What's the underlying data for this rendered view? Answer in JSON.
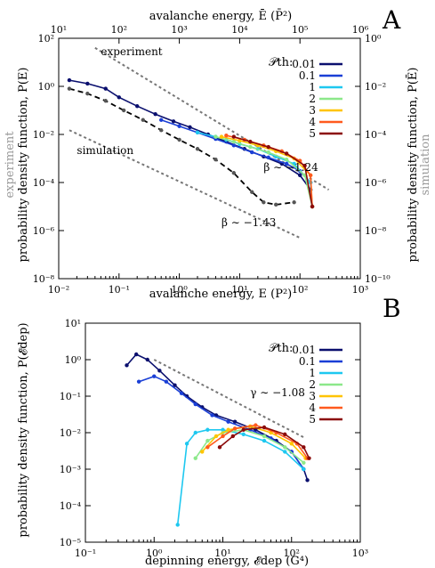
{
  "chart_data": [
    {
      "type": "line",
      "panel_label": "A",
      "title": "",
      "xlabel": "avalanche energy, E (P²)",
      "xlabel_top": "avalanche energy, Ē (P̄²)",
      "ylabel": "probability density function, P(E)",
      "ylabel_right": "probability density function, P(Ē)",
      "side_label_left": "experiment",
      "side_label_right": "simulation",
      "xscale": "log",
      "yscale": "log",
      "xlim": [
        0.01,
        1000
      ],
      "ylim": [
        1e-08,
        100
      ],
      "xlim_top": [
        10,
        1000000
      ],
      "ylim_right": [
        1e-10,
        1
      ],
      "x_ticks": [
        "10⁻²",
        "10⁻¹",
        "10⁰",
        "10¹",
        "10²",
        "10³"
      ],
      "y_ticks": [
        "10⁻⁸",
        "10⁻⁶",
        "10⁻⁴",
        "10⁻²",
        "10⁰",
        "10²"
      ],
      "x_ticks_top": [
        "10¹",
        "10²",
        "10³",
        "10⁴",
        "10⁵",
        "10⁶"
      ],
      "y_ticks_right": [
        "10⁻¹⁰",
        "10⁻⁸",
        "10⁻⁶",
        "10⁻⁴",
        "10⁻²",
        "10⁰"
      ],
      "legend_title": "𝒫th:",
      "legend_position": "top-right",
      "series": [
        {
          "name": "0.01",
          "color": "#0a0f6e",
          "x": [
            0.015,
            0.03,
            0.06,
            0.1,
            0.2,
            0.4,
            0.8,
            1.5,
            3,
            6,
            12,
            25,
            50,
            100,
            150,
            160
          ],
          "y": [
            1.8,
            1.3,
            0.8,
            0.35,
            0.15,
            0.07,
            0.035,
            0.02,
            0.01,
            0.005,
            0.0025,
            0.0012,
            0.0006,
            0.0002,
            5e-05,
            1e-05
          ]
        },
        {
          "name": "0.1",
          "color": "#1a3fd6",
          "x": [
            0.5,
            1,
            2,
            4,
            8,
            16,
            30,
            60,
            100,
            150,
            160
          ],
          "y": [
            0.04,
            0.022,
            0.012,
            0.0065,
            0.0035,
            0.0018,
            0.0011,
            0.0006,
            0.0003,
            0.0001,
            1e-05
          ]
        },
        {
          "name": "1",
          "color": "#1ec8f0",
          "x": [
            2,
            4,
            6,
            10,
            20,
            40,
            80,
            150,
            160
          ],
          "y": [
            0.012,
            0.008,
            0.006,
            0.004,
            0.0025,
            0.0012,
            0.0006,
            0.0001,
            1e-05
          ]
        },
        {
          "name": "2",
          "color": "#8ce88a",
          "x": [
            4,
            8,
            15,
            30,
            60,
            120,
            160
          ],
          "y": [
            0.008,
            0.005,
            0.003,
            0.0018,
            0.0009,
            0.0002,
            1e-05
          ]
        },
        {
          "name": "3",
          "color": "#ffc400",
          "x": [
            5,
            10,
            20,
            40,
            80,
            150,
            160
          ],
          "y": [
            0.008,
            0.0055,
            0.0035,
            0.002,
            0.001,
            0.0002,
            1e-05
          ]
        },
        {
          "name": "4",
          "color": "#ff5a1e",
          "x": [
            6,
            12,
            25,
            50,
            100,
            150,
            160
          ],
          "y": [
            0.009,
            0.006,
            0.0035,
            0.002,
            0.0008,
            0.0002,
            1e-05
          ]
        },
        {
          "name": "5",
          "color": "#8b0a0a",
          "x": [
            8,
            15,
            30,
            60,
            120,
            160
          ],
          "y": [
            0.008,
            0.005,
            0.003,
            0.0016,
            0.0005,
            1e-05
          ]
        }
      ],
      "simulation_series": {
        "color": "#000000",
        "x": [
          0.015,
          0.03,
          0.06,
          0.12,
          0.25,
          0.5,
          1,
          2,
          4,
          8,
          16,
          25,
          40,
          80
        ],
        "y": [
          0.8,
          0.5,
          0.25,
          0.1,
          0.04,
          0.015,
          0.006,
          0.0025,
          0.0009,
          0.00025,
          4e-05,
          1.5e-05,
          1.2e-05,
          1.5e-05
        ]
      },
      "annotations": [
        {
          "text": "experiment",
          "x": 0.05,
          "y": 20
        },
        {
          "text": "simulation",
          "x": 0.02,
          "y": 0.0015
        },
        {
          "text": "β ∼ −1.24",
          "x": 25,
          "y": 0.0003
        },
        {
          "text": "β ∼ −1.43",
          "x": 5,
          "y": 1.5e-06
        }
      ],
      "reference_lines": [
        {
          "x": [
            0.04,
            300
          ],
          "y": [
            40,
            5e-05
          ]
        },
        {
          "x": [
            0.015,
            100
          ],
          "y": [
            0.015,
            5e-07
          ]
        }
      ]
    },
    {
      "type": "line",
      "panel_label": "B",
      "title": "",
      "xlabel": "depinning energy, 𝓔dep (G⁴)",
      "ylabel": "probability density function, P(𝓔dep)",
      "xscale": "log",
      "yscale": "log",
      "xlim": [
        0.1,
        1000
      ],
      "ylim": [
        1e-05,
        10
      ],
      "x_ticks": [
        "10⁻¹",
        "10⁰",
        "10¹",
        "10²",
        "10³"
      ],
      "y_ticks": [
        "10⁻⁵",
        "10⁻⁴",
        "10⁻³",
        "10⁻²",
        "10⁻¹",
        "10⁰",
        "10¹"
      ],
      "legend_title": "𝒫th:",
      "legend_position": "top-right",
      "series": [
        {
          "name": "0.01",
          "color": "#0a0f6e",
          "x": [
            0.4,
            0.55,
            0.8,
            1.2,
            2,
            3,
            5,
            8,
            15,
            30,
            60,
            100,
            150,
            170
          ],
          "y": [
            0.7,
            1.4,
            1.0,
            0.5,
            0.2,
            0.1,
            0.05,
            0.03,
            0.02,
            0.012,
            0.006,
            0.003,
            0.001,
            0.0005
          ]
        },
        {
          "name": "0.1",
          "color": "#1a3fd6",
          "x": [
            0.6,
            1,
            1.5,
            2.5,
            4,
            7,
            12,
            25,
            50,
            100,
            150
          ],
          "y": [
            0.25,
            0.35,
            0.25,
            0.12,
            0.06,
            0.03,
            0.02,
            0.012,
            0.007,
            0.003,
            0.001
          ]
        },
        {
          "name": "1",
          "color": "#1ec8f0",
          "x": [
            2.2,
            3,
            4,
            6,
            10,
            20,
            40,
            80,
            150
          ],
          "y": [
            3e-05,
            0.005,
            0.01,
            0.012,
            0.012,
            0.009,
            0.006,
            0.003,
            0.001
          ]
        },
        {
          "name": "2",
          "color": "#8ce88a",
          "x": [
            4,
            6,
            10,
            20,
            40,
            80,
            150
          ],
          "y": [
            0.002,
            0.006,
            0.01,
            0.012,
            0.008,
            0.004,
            0.0015
          ]
        },
        {
          "name": "3",
          "color": "#ffc400",
          "x": [
            5,
            8,
            12,
            25,
            50,
            100,
            160
          ],
          "y": [
            0.003,
            0.008,
            0.012,
            0.015,
            0.01,
            0.005,
            0.002
          ]
        },
        {
          "name": "4",
          "color": "#ff5a1e",
          "x": [
            6,
            10,
            15,
            30,
            60,
            120,
            170
          ],
          "y": [
            0.004,
            0.008,
            0.013,
            0.016,
            0.01,
            0.005,
            0.002
          ]
        },
        {
          "name": "5",
          "color": "#8b0a0a",
          "x": [
            9,
            14,
            20,
            40,
            80,
            150,
            180
          ],
          "y": [
            0.004,
            0.008,
            0.012,
            0.014,
            0.009,
            0.004,
            0.002
          ]
        }
      ],
      "annotations": [
        {
          "text": "γ ∼ −1.08",
          "x": 25,
          "y": 0.1
        }
      ],
      "reference_lines": [
        {
          "x": [
            1,
            160
          ],
          "y": [
            1.0,
            0.007
          ]
        }
      ]
    }
  ]
}
